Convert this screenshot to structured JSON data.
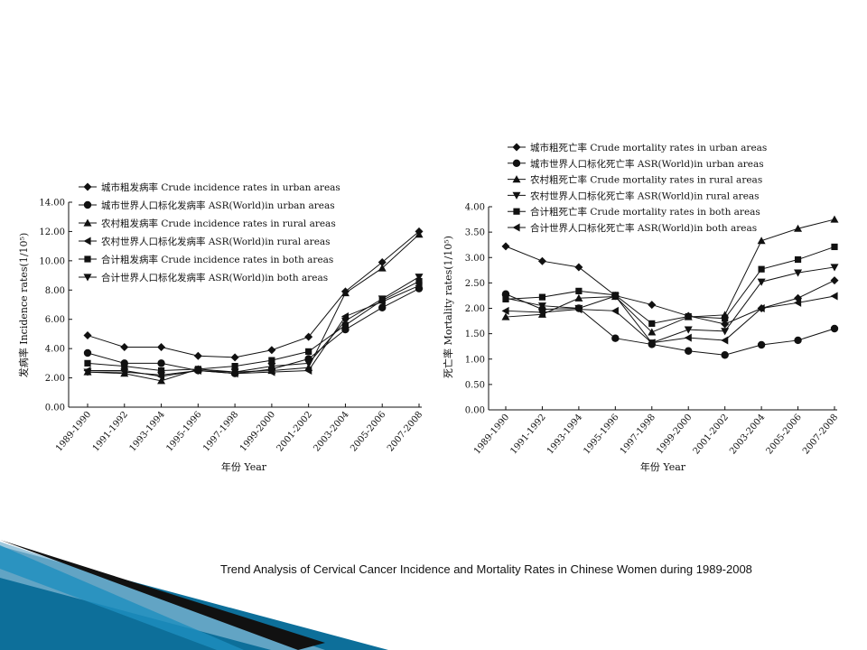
{
  "caption": "Trend Analysis of Cervical Cancer Incidence and Mortality Rates in Chinese Women during 1989-2008",
  "chart_data": [
    {
      "type": "line",
      "xlabel": "年份 Year",
      "ylabel": "发病率 Incidence rates(1/10⁵)",
      "ylim": [
        0,
        14
      ],
      "yticks": [
        "0.00",
        "2.00",
        "4.00",
        "6.00",
        "8.00",
        "10.00",
        "12.00",
        "14.00"
      ],
      "categories": [
        "1989-1990",
        "1991-1992",
        "1993-1994",
        "1995-1996",
        "1997-1998",
        "1999-2000",
        "2001-2002",
        "2003-2004",
        "2005-2006",
        "2007-2008"
      ],
      "legend_position": "top-left",
      "grid": false,
      "series": [
        {
          "name": "城市粗发病率 Crude incidence rates in urban areas",
          "marker": "diamond",
          "values": [
            4.9,
            4.1,
            4.1,
            3.5,
            3.4,
            3.9,
            4.8,
            7.9,
            9.9,
            12.0
          ]
        },
        {
          "name": "城市世界人口标化发病率 ASR(World)in urban areas",
          "marker": "circle",
          "values": [
            3.7,
            3.0,
            3.0,
            2.5,
            2.3,
            2.6,
            3.3,
            5.3,
            6.8,
            8.1
          ]
        },
        {
          "name": "农村粗发病率 Crude incidence rates in rural areas",
          "marker": "triangle-up",
          "values": [
            2.4,
            2.3,
            1.8,
            2.6,
            2.4,
            2.5,
            2.7,
            7.8,
            9.5,
            11.8
          ]
        },
        {
          "name": "农村世界人口标化发病率 ASR(World)in rural areas",
          "marker": "triangle-left",
          "values": [
            2.5,
            2.5,
            2.1,
            2.5,
            2.3,
            2.4,
            2.5,
            6.2,
            7.2,
            8.3
          ]
        },
        {
          "name": "合计粗发病率 Crude incidence rates in both areas",
          "marker": "square",
          "values": [
            3.0,
            2.8,
            2.5,
            2.6,
            2.8,
            3.2,
            3.8,
            5.6,
            7.3,
            8.6
          ]
        },
        {
          "name": "合计世界人口标化发病率 ASR(World)in both areas",
          "marker": "triangle-down",
          "values": [
            2.4,
            2.4,
            2.2,
            2.5,
            2.4,
            2.8,
            3.0,
            5.9,
            7.4,
            8.9
          ]
        }
      ]
    },
    {
      "type": "line",
      "xlabel": "年份 Year",
      "ylabel": "死亡率 Mortality rates(1/10⁵)",
      "ylim": [
        0,
        4
      ],
      "yticks": [
        "0.00",
        "0.50",
        "1.00",
        "1.50",
        "2.00",
        "2.50",
        "3.00",
        "3.50",
        "4.00"
      ],
      "categories": [
        "1989-1990",
        "1991-1992",
        "1993-1994",
        "1995-1996",
        "1997-1998",
        "1999-2000",
        "2001-2002",
        "2003-2004",
        "2005-2006",
        "2007-2008"
      ],
      "legend_position": "top-left",
      "grid": false,
      "series": [
        {
          "name": "城市粗死亡率 Crude mortality rates in urban areas",
          "marker": "diamond",
          "values": [
            3.22,
            2.93,
            2.81,
            2.25,
            2.07,
            1.85,
            1.69,
            2.0,
            2.2,
            2.55
          ]
        },
        {
          "name": "城市世界人口标化死亡率 ASR(World)in urban areas",
          "marker": "circle",
          "values": [
            2.28,
            1.98,
            2.0,
            1.41,
            1.29,
            1.16,
            1.08,
            1.28,
            1.37,
            1.6
          ]
        },
        {
          "name": "农村粗死亡率 Crude mortality rates in rural areas",
          "marker": "triangle-up",
          "values": [
            1.83,
            1.88,
            2.2,
            2.23,
            1.53,
            1.83,
            1.87,
            3.33,
            3.57,
            3.75
          ]
        },
        {
          "name": "农村世界人口标化死亡率 ASR(World)in rural areas",
          "marker": "triangle-down",
          "values": [
            2.2,
            2.05,
            2.0,
            2.24,
            1.32,
            1.58,
            1.55,
            2.52,
            2.7,
            2.81
          ]
        },
        {
          "name": "合计粗死亡率 Crude mortality rates in both areas",
          "marker": "square",
          "values": [
            2.18,
            2.22,
            2.34,
            2.26,
            1.7,
            1.84,
            1.8,
            2.77,
            2.96,
            3.21
          ]
        },
        {
          "name": "合计世界人口标化死亡率 ASR(World)in both areas",
          "marker": "triangle-left",
          "values": [
            1.95,
            1.92,
            1.98,
            1.95,
            1.32,
            1.42,
            1.37,
            2.0,
            2.11,
            2.24
          ]
        }
      ]
    }
  ]
}
